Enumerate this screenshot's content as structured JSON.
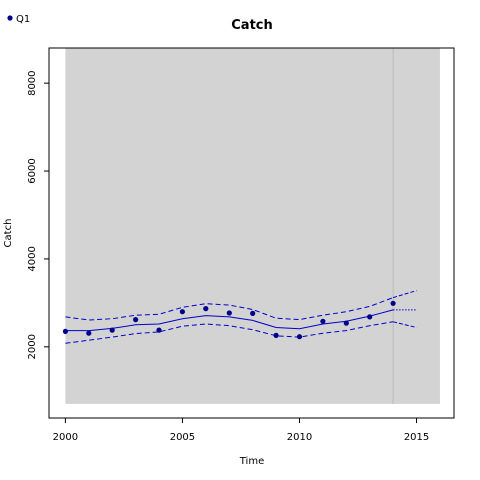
{
  "chart_data": {
    "type": "line",
    "title": "Catch",
    "xlabel": "Time",
    "ylabel": "Catch",
    "xlim": [
      1999.3,
      2016.6
    ],
    "ylim": [
      380,
      8800
    ],
    "x_ticks": [
      2000,
      2005,
      2010,
      2015
    ],
    "y_ticks": [
      2000,
      4000,
      6000,
      8000
    ],
    "x_tick_labels": [
      "2000",
      "2005",
      "2010",
      "2015"
    ],
    "y_tick_labels": [
      "2000",
      "4000",
      "6000",
      "8000"
    ],
    "shaded_region": {
      "x": [
        2000,
        2016
      ],
      "y": [
        700,
        8800
      ],
      "color": "#d3d3d3"
    },
    "divider_x": 2014,
    "legend": {
      "placement": "top-left",
      "entries": [
        "Q1"
      ]
    },
    "series": [
      {
        "name": "Q1",
        "kind": "points",
        "color": "#00008b",
        "x": [
          2000,
          2001,
          2002,
          2003,
          2004,
          2005,
          2006,
          2007,
          2008,
          2009,
          2010,
          2011,
          2012,
          2013,
          2014
        ],
        "values": [
          2350,
          2310,
          2380,
          2620,
          2380,
          2800,
          2870,
          2770,
          2760,
          2260,
          2230,
          2580,
          2540,
          2680,
          2990
        ]
      },
      {
        "kind": "fit",
        "color": "#0000cd",
        "x": [
          2000,
          2001,
          2002,
          2003,
          2004,
          2005,
          2006,
          2007,
          2008,
          2009,
          2010,
          2011,
          2012,
          2013,
          2014
        ],
        "values": [
          2370,
          2370,
          2420,
          2500,
          2520,
          2640,
          2710,
          2680,
          2600,
          2440,
          2410,
          2520,
          2580,
          2700,
          2840
        ]
      },
      {
        "kind": "upper_band",
        "color": "#0000cd",
        "x": [
          2000,
          2001,
          2002,
          2003,
          2004,
          2005,
          2006,
          2007,
          2008,
          2009,
          2010,
          2011,
          2012,
          2013,
          2014
        ],
        "values": [
          2680,
          2610,
          2640,
          2720,
          2740,
          2900,
          2980,
          2950,
          2850,
          2650,
          2620,
          2720,
          2800,
          2920,
          3120
        ]
      },
      {
        "kind": "lower_band",
        "color": "#0000cd",
        "x": [
          2000,
          2001,
          2002,
          2003,
          2004,
          2005,
          2006,
          2007,
          2008,
          2009,
          2010,
          2011,
          2012,
          2013,
          2014
        ],
        "values": [
          2080,
          2150,
          2220,
          2300,
          2340,
          2470,
          2520,
          2480,
          2390,
          2250,
          2220,
          2310,
          2370,
          2480,
          2570
        ]
      },
      {
        "kind": "forecast",
        "color": "#0000cd",
        "x": [
          2014,
          2015
        ],
        "values": [
          2840,
          2840
        ],
        "upper": [
          3120,
          3280
        ],
        "lower": [
          2570,
          2440
        ]
      }
    ]
  }
}
